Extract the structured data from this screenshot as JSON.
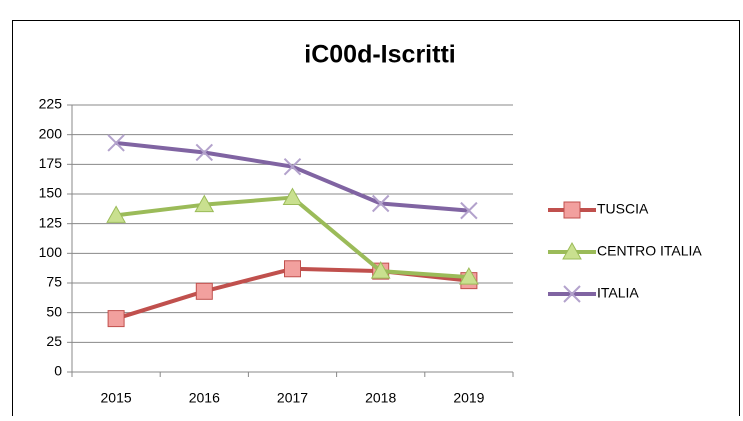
{
  "chart_data": {
    "type": "line",
    "title": "iC00d-Iscritti",
    "categories": [
      "2015",
      "2016",
      "2017",
      "2018",
      "2019"
    ],
    "series": [
      {
        "name": "TUSCIA",
        "color": "#c0504d",
        "marker": "square",
        "values": [
          45,
          68,
          87,
          85,
          77
        ]
      },
      {
        "name": "CENTRO ITALIA",
        "color": "#9bbb59",
        "marker": "triangle",
        "values": [
          132,
          141,
          147,
          85,
          80
        ]
      },
      {
        "name": "ITALIA",
        "color": "#8064a2",
        "marker": "x",
        "values": [
          193,
          185,
          173,
          142,
          136
        ]
      }
    ],
    "ylim": [
      0,
      225
    ],
    "yticks": [
      0,
      25,
      50,
      75,
      100,
      125,
      150,
      175,
      200,
      225
    ],
    "grid": true,
    "legend": "right"
  }
}
